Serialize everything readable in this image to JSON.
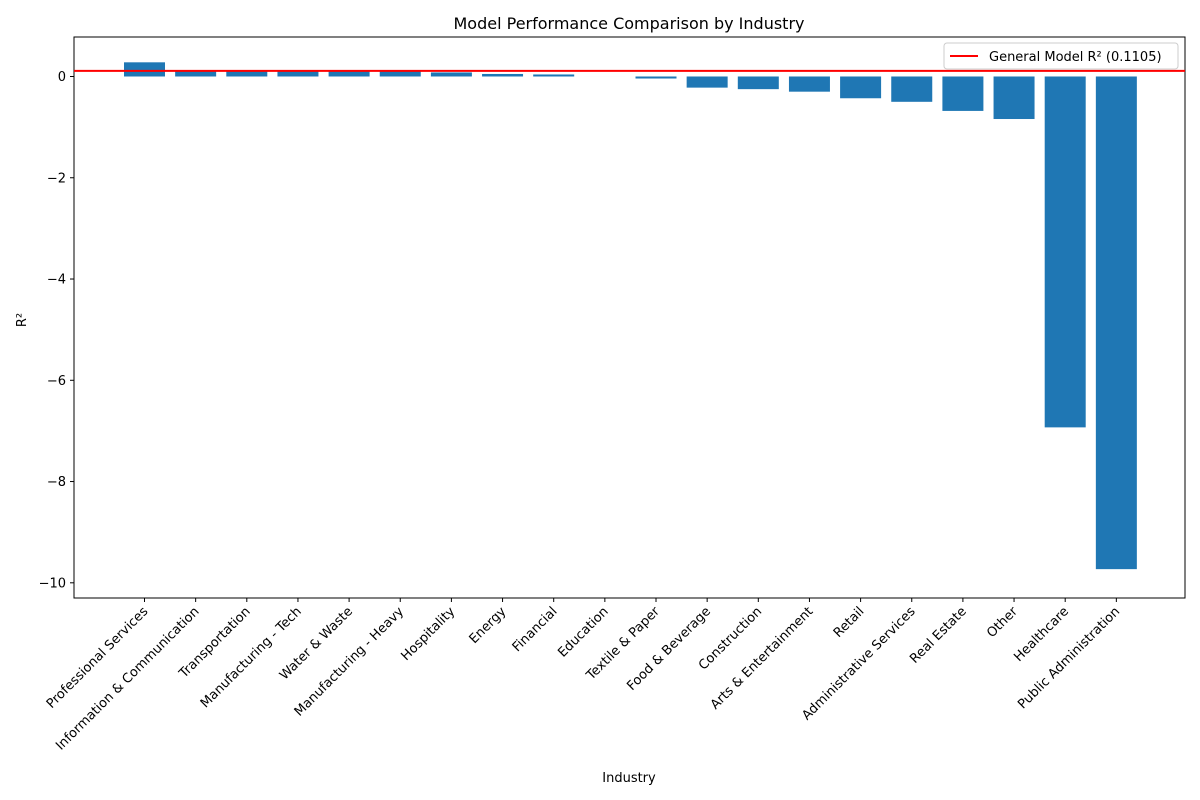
{
  "chart_data": {
    "type": "bar",
    "title": "Model Performance Comparison by Industry",
    "xlabel": "Industry",
    "ylabel": "R²",
    "ylim": [
      -10.3,
      0.78
    ],
    "yticks": [
      -10,
      -8,
      -6,
      -4,
      -2,
      0
    ],
    "ytick_labels": [
      "−10",
      "−8",
      "−6",
      "−4",
      "−2",
      "0"
    ],
    "grid": false,
    "legend_position": "top-right",
    "categories": [
      "Professional Services",
      "Information & Communication",
      "Transportation",
      "Manufacturing - Tech",
      "Water & Waste",
      "Manufacturing - Heavy",
      "Hospitality",
      "Energy",
      "Financial",
      "Education",
      "Textile & Paper",
      "Food & Beverage",
      "Construction",
      "Arts & Entertainment",
      "Retail",
      "Administrative Services",
      "Real Estate",
      "Other",
      "Healthcare",
      "Public Administration"
    ],
    "values": [
      0.28,
      0.12,
      0.12,
      0.12,
      0.12,
      0.11,
      0.08,
      0.05,
      0.04,
      0.0,
      -0.04,
      -0.22,
      -0.25,
      -0.3,
      -0.43,
      -0.5,
      -0.68,
      -0.84,
      -6.93,
      -9.73
    ],
    "bar_color": "#1f77b4",
    "reference_line": {
      "label": "General Model R² (0.1105)",
      "value": 0.1105,
      "color": "#ff0000"
    }
  }
}
